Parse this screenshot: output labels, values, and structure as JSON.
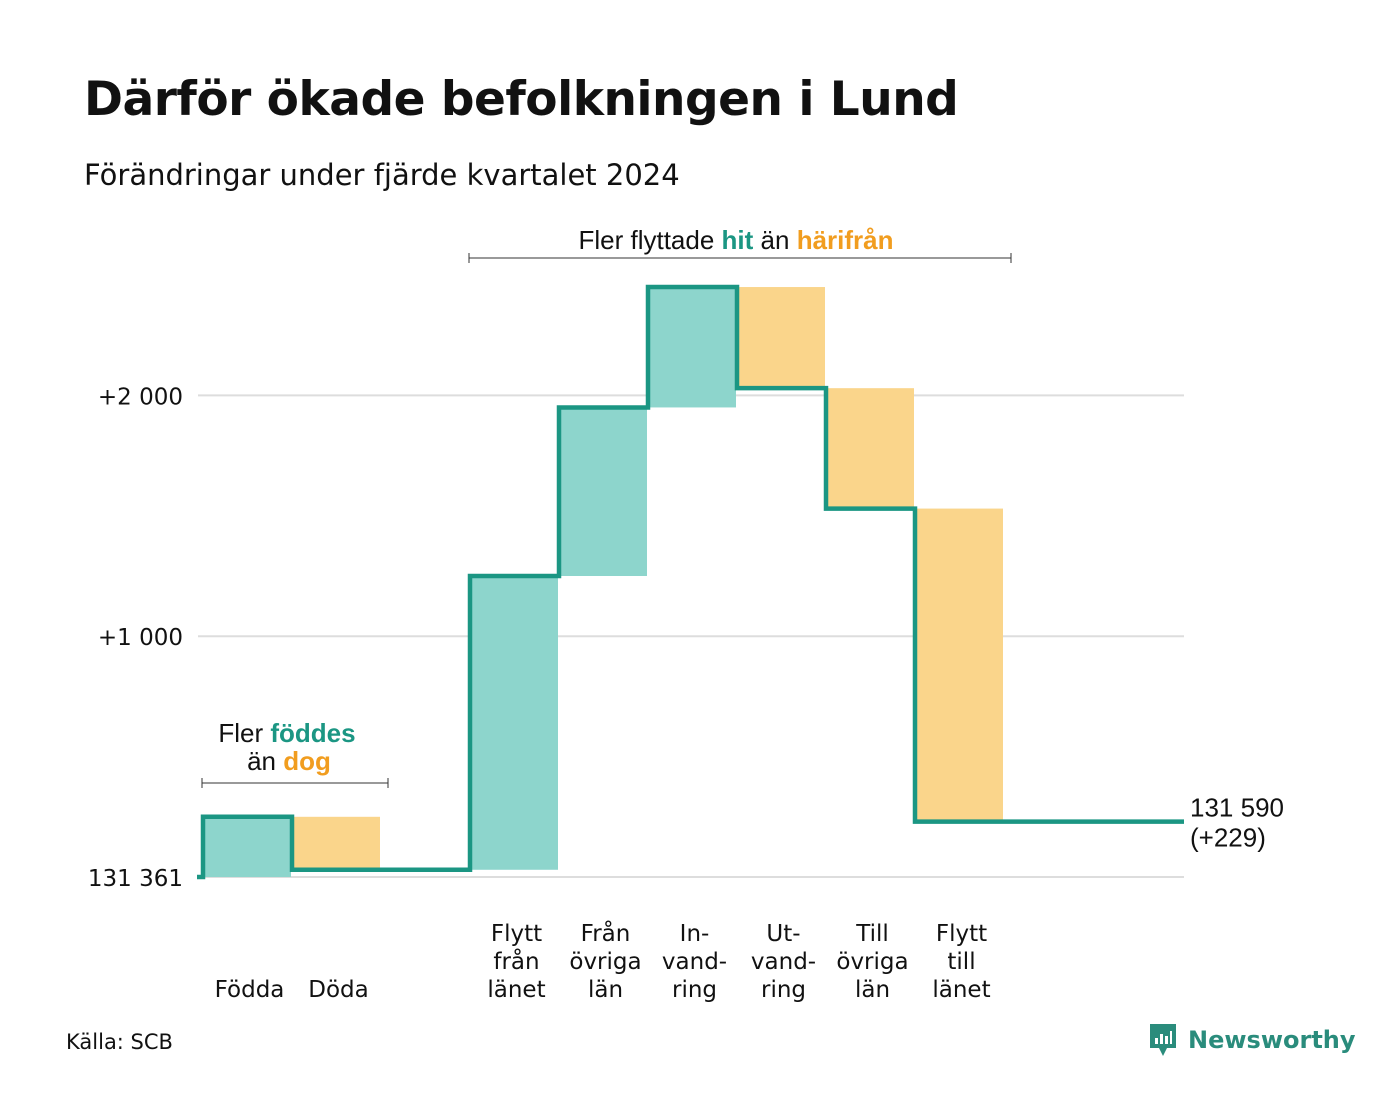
{
  "title": "Därför ökade befolkningen i Lund",
  "subtitle": "Förändringar under fjärde kvartalet 2024",
  "source": "Källa: SCB",
  "brand": "Newsworthy",
  "colors": {
    "increase_fill": "#8dd5cc",
    "decrease_fill": "#fad58b",
    "step_line": "#1b9683",
    "increase_text": "#1b9683",
    "decrease_text": "#f19d1f",
    "gridline": "#dddddd"
  },
  "annotations": {
    "natural": {
      "line1_prefix": "Fler ",
      "line1_highlight": "föddes",
      "line2_prefix": "än ",
      "line2_highlight": "dog"
    },
    "migration": {
      "prefix": "Fler flyttade ",
      "highlight1": "hit",
      "middle": " än ",
      "highlight2": "härifrån"
    }
  },
  "chart_data": {
    "type": "waterfall",
    "title": "Därför ökade befolkningen i Lund",
    "subtitle": "Förändringar under fjärde kvartalet 2024",
    "baseline_label": "131 361",
    "baseline_value": 131361,
    "y_ticks": [
      {
        "value": 0,
        "label": "131 361"
      },
      {
        "value": 1000,
        "label": "+1 000"
      },
      {
        "value": 2000,
        "label": "+2 000"
      }
    ],
    "ylim": [
      0,
      2450
    ],
    "grid": true,
    "steps": [
      {
        "label": [
          "Födda"
        ],
        "value": 250,
        "direction": "increase"
      },
      {
        "label": [
          "Döda"
        ],
        "value": -220,
        "direction": "decrease"
      },
      {
        "label": [],
        "value": 0,
        "direction": "none"
      },
      {
        "label": [
          "Flytt",
          "från",
          "länet"
        ],
        "value": 1220,
        "direction": "increase"
      },
      {
        "label": [
          "Från",
          "övriga",
          "län"
        ],
        "value": 700,
        "direction": "increase"
      },
      {
        "label": [
          "In-",
          "vand-",
          "ring"
        ],
        "value": 500,
        "direction": "increase"
      },
      {
        "label": [
          "Ut-",
          "vand-",
          "ring"
        ],
        "value": -420,
        "direction": "decrease"
      },
      {
        "label": [
          "Till",
          "övriga",
          "län"
        ],
        "value": -500,
        "direction": "decrease"
      },
      {
        "label": [
          "Flytt",
          "till",
          "länet"
        ],
        "value": -1300,
        "direction": "decrease"
      }
    ],
    "end_label": [
      "131 590",
      "(+229)"
    ],
    "end_value": 131590,
    "net_change": 229
  }
}
